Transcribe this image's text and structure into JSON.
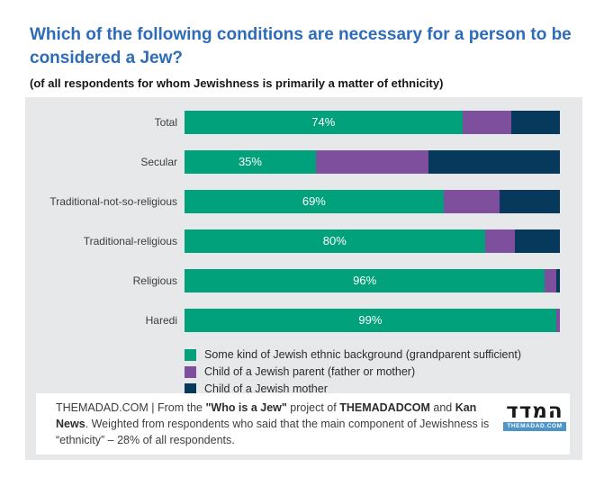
{
  "header": {
    "title": "Which of the following conditions are necessary for a person to be considered a Jew?",
    "subtitle": "(of all respondents for whom Jewishness is primarily a matter of ethnicity)"
  },
  "colors": {
    "title_blue": "#2e6cb8",
    "panel_bg": "#e7e8ea",
    "green": "#00a17b",
    "purple": "#7d4f9d",
    "navy": "#06395c",
    "logo_strip_blue": "#4d94c9"
  },
  "chart_data": {
    "type": "bar",
    "variant": "horizontal-stacked",
    "title": "Which of the following conditions are necessary for a person to be considered a Jew?",
    "subtitle": "(of all respondents for whom Jewishness is primarily a matter of ethnicity)",
    "xlim": [
      0,
      100
    ],
    "grid": false,
    "legend_position": "bottom-left",
    "value_labels": "first-series-only",
    "categories": [
      "Total",
      "Secular",
      "Traditional-not-so-religious",
      "Traditional-religious",
      "Religious",
      "Haredi"
    ],
    "series": [
      {
        "name": "Some kind of Jewish ethnic background (grandparent sufficient)",
        "color_key": "green",
        "values": [
          74,
          35,
          69,
          80,
          96,
          99
        ],
        "labels": [
          "74%",
          "35%",
          "69%",
          "80%",
          "96%",
          "99%"
        ]
      },
      {
        "name": "Child of a Jewish parent (father or mother)",
        "color_key": "purple",
        "values": [
          13,
          30,
          15,
          8,
          3,
          1
        ]
      },
      {
        "name": "Child of a Jewish mother",
        "color_key": "navy",
        "values": [
          13,
          35,
          16,
          12,
          1,
          0
        ]
      }
    ]
  },
  "footer": {
    "rich_text": [
      {
        "text": "THEMADAD.COM  |  From the ",
        "bold": false
      },
      {
        "text": "\"Who is a Jew\"",
        "bold": true
      },
      {
        "text": " project of ",
        "bold": false
      },
      {
        "text": "THEMADADCOM",
        "bold": true
      },
      {
        "text": " and ",
        "bold": false
      },
      {
        "text": "Kan News",
        "bold": true
      },
      {
        "text": ". Weighted from respondents who said that the main component of Jewishness is “ethnicity” – 28% of all respondents.",
        "bold": false
      }
    ],
    "logo": {
      "hebrew": "המדד",
      "domain": "THEMADAD.COM"
    }
  }
}
